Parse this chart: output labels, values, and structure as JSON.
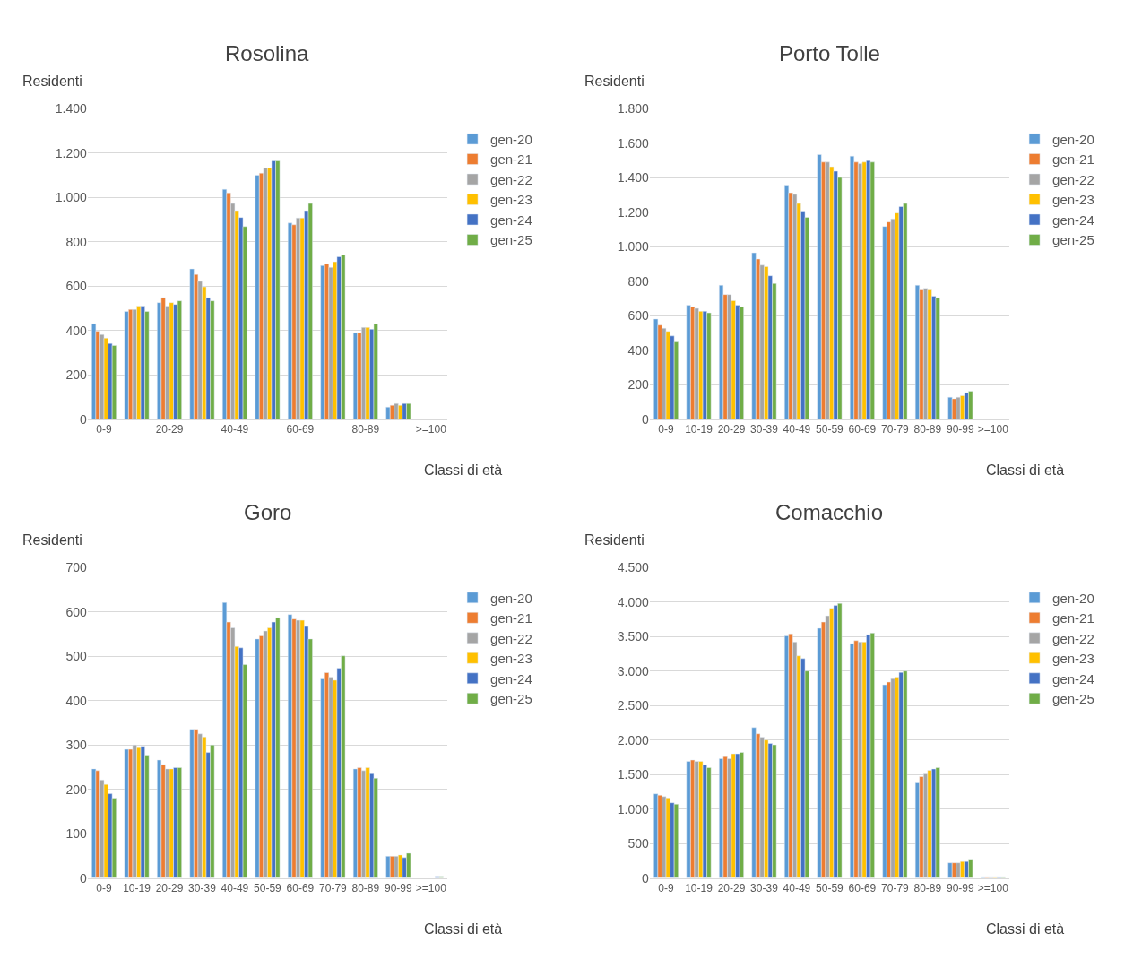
{
  "chart_data": [
    {
      "type": "bar",
      "title": "Rosolina",
      "xlabel": "Classi di età",
      "ylabel": "Residenti",
      "categories": [
        "0-9",
        null,
        "20-29",
        null,
        "40-49",
        null,
        "60-69",
        null,
        "80-89",
        null,
        ">=100"
      ],
      "ylim": [
        0,
        1400
      ],
      "yticks": [
        0,
        200,
        400,
        600,
        800,
        {
          "value": 1000,
          "label": "1.000"
        },
        {
          "value": 1200,
          "label": "1.200"
        },
        {
          "value": 1400,
          "label": "1.400"
        }
      ],
      "grid": "y",
      "legend": "right",
      "series": [
        {
          "name": "gen-20",
          "color": "#5b9bd5",
          "values": [
            431,
            486,
            526,
            678,
            1037,
            1101,
            885,
            693,
            390,
            55,
            null
          ]
        },
        {
          "name": "gen-21",
          "color": "#ed7d31",
          "values": [
            397,
            495,
            549,
            653,
            1021,
            1110,
            877,
            701,
            390,
            63,
            null
          ]
        },
        {
          "name": "gen-22",
          "color": "#a5a5a5",
          "values": [
            382,
            495,
            510,
            622,
            973,
            1133,
            908,
            685,
            414,
            71,
            null
          ]
        },
        {
          "name": "gen-23",
          "color": "#ffc000",
          "values": [
            366,
            510,
            526,
            597,
            941,
            1133,
            908,
            710,
            414,
            63,
            null
          ]
        },
        {
          "name": "gen-24",
          "color": "#4472c4",
          "values": [
            342,
            510,
            518,
            549,
            910,
            1165,
            941,
            733,
            406,
            71,
            null
          ]
        },
        {
          "name": "gen-25",
          "color": "#70ad47",
          "values": [
            333,
            486,
            534,
            534,
            869,
            1165,
            973,
            741,
            430,
            71,
            null
          ]
        }
      ]
    },
    {
      "type": "bar",
      "title": "Porto Tolle",
      "xlabel": "Classi di età",
      "ylabel": "Residenti",
      "categories": [
        "0-9",
        "10-19",
        "20-29",
        "30-39",
        "40-49",
        "50-59",
        "60-69",
        "70-79",
        "80-89",
        "90-99",
        ">=100"
      ],
      "ylim": [
        0,
        1800
      ],
      "yticks": [
        0,
        200,
        400,
        600,
        800,
        {
          "value": 1000,
          "label": "1.000"
        },
        {
          "value": 1200,
          "label": "1.200"
        },
        {
          "value": 1400,
          "label": "1.400"
        },
        {
          "value": 1600,
          "label": "1.600"
        },
        {
          "value": 1800,
          "label": "1.800"
        }
      ],
      "grid": "y",
      "legend": "right",
      "series": [
        {
          "name": "gen-20",
          "color": "#5b9bd5",
          "values": [
            581,
            661,
            777,
            965,
            1358,
            1535,
            1526,
            1118,
            777,
            128,
            null
          ]
        },
        {
          "name": "gen-21",
          "color": "#ed7d31",
          "values": [
            546,
            652,
            723,
            929,
            1313,
            1491,
            1491,
            1144,
            750,
            119,
            null
          ]
        },
        {
          "name": "gen-22",
          "color": "#a5a5a5",
          "values": [
            528,
            643,
            723,
            894,
            1304,
            1491,
            1482,
            1162,
            759,
            128,
            null
          ]
        },
        {
          "name": "gen-23",
          "color": "#ffc000",
          "values": [
            510,
            626,
            688,
            885,
            1251,
            1464,
            1491,
            1196,
            750,
            137,
            null
          ]
        },
        {
          "name": "gen-24",
          "color": "#4472c4",
          "values": [
            483,
            626,
            661,
            832,
            1207,
            1438,
            1500,
            1233,
            714,
            155,
            null
          ]
        },
        {
          "name": "gen-25",
          "color": "#70ad47",
          "values": [
            448,
            617,
            652,
            787,
            1171,
            1402,
            1491,
            1251,
            705,
            163,
            null
          ]
        }
      ]
    },
    {
      "type": "bar",
      "title": "Goro",
      "xlabel": "Classi di età",
      "ylabel": "Residenti",
      "categories": [
        "0-9",
        "10-19",
        "20-29",
        "30-39",
        "40-49",
        "50-59",
        "60-69",
        "70-79",
        "80-89",
        "90-99",
        ">=100"
      ],
      "ylim": [
        0,
        700
      ],
      "yticks": [
        0,
        100,
        200,
        300,
        400,
        500,
        600,
        700
      ],
      "grid": "y",
      "legend": "right",
      "series": [
        {
          "name": "gen-20",
          "color": "#5b9bd5",
          "values": [
            246,
            290,
            266,
            335,
            621,
            539,
            594,
            449,
            246,
            49,
            null
          ]
        },
        {
          "name": "gen-21",
          "color": "#ed7d31",
          "values": [
            242,
            290,
            256,
            335,
            577,
            546,
            584,
            463,
            249,
            49,
            null
          ]
        },
        {
          "name": "gen-22",
          "color": "#a5a5a5",
          "values": [
            221,
            300,
            246,
            325,
            564,
            557,
            581,
            453,
            242,
            49,
            null
          ]
        },
        {
          "name": "gen-23",
          "color": "#ffc000",
          "values": [
            211,
            294,
            246,
            318,
            522,
            564,
            581,
            446,
            249,
            52,
            null
          ]
        },
        {
          "name": "gen-24",
          "color": "#4472c4",
          "values": [
            190,
            297,
            249,
            283,
            519,
            577,
            567,
            473,
            235,
            46,
            4
          ]
        },
        {
          "name": "gen-25",
          "color": "#70ad47",
          "values": [
            180,
            277,
            249,
            300,
            481,
            587,
            539,
            501,
            225,
            56,
            4
          ]
        }
      ]
    },
    {
      "type": "bar",
      "title": "Comacchio",
      "xlabel": "Classi di età",
      "ylabel": "Residenti",
      "categories": [
        "0-9",
        "10-19",
        "20-29",
        "30-39",
        "40-49",
        "50-59",
        "60-69",
        "70-79",
        "80-89",
        "90-99",
        ">=100"
      ],
      "ylim": [
        0,
        4500
      ],
      "yticks": [
        0,
        500,
        {
          "value": 1000,
          "label": "1.000"
        },
        {
          "value": 1500,
          "label": "1.500"
        },
        {
          "value": 2000,
          "label": "2.000"
        },
        {
          "value": 2500,
          "label": "2.500"
        },
        {
          "value": 3000,
          "label": "3.000"
        },
        {
          "value": 3500,
          "label": "3.500"
        },
        {
          "value": 4000,
          "label": "4.000"
        },
        {
          "value": 4500,
          "label": "4.500"
        }
      ],
      "grid": "y",
      "legend": "right",
      "series": [
        {
          "name": "gen-20",
          "color": "#5b9bd5",
          "values": [
            1220,
            1690,
            1730,
            2180,
            3510,
            3620,
            3400,
            2800,
            1380,
            220,
            20
          ]
        },
        {
          "name": "gen-21",
          "color": "#ed7d31",
          "values": [
            1200,
            1710,
            1760,
            2090,
            3540,
            3710,
            3440,
            2840,
            1470,
            220,
            20
          ]
        },
        {
          "name": "gen-22",
          "color": "#a5a5a5",
          "values": [
            1180,
            1690,
            1730,
            2040,
            3420,
            3800,
            3420,
            2890,
            1510,
            220,
            20
          ]
        },
        {
          "name": "gen-23",
          "color": "#ffc000",
          "values": [
            1160,
            1690,
            1800,
            2000,
            3220,
            3910,
            3420,
            2910,
            1560,
            240,
            20
          ]
        },
        {
          "name": "gen-24",
          "color": "#4472c4",
          "values": [
            1090,
            1640,
            1800,
            1950,
            3180,
            3950,
            3530,
            2980,
            1580,
            240,
            20
          ]
        },
        {
          "name": "gen-25",
          "color": "#70ad47",
          "values": [
            1070,
            1600,
            1820,
            1930,
            3000,
            3980,
            3550,
            3000,
            1600,
            270,
            20
          ]
        }
      ]
    }
  ]
}
